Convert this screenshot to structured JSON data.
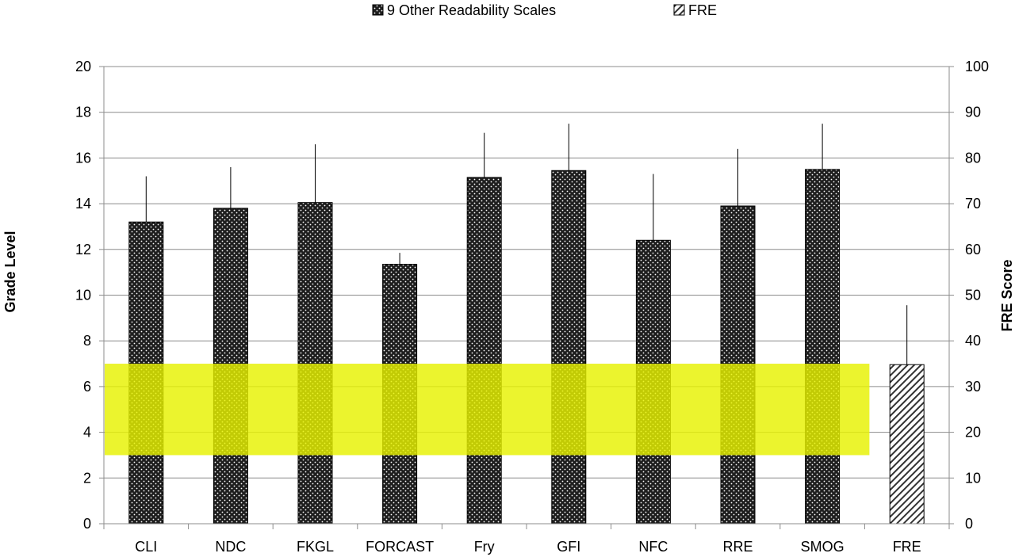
{
  "chart_data": {
    "type": "bar",
    "categories": [
      "CLI",
      "NDC",
      "FKGL",
      "FORCAST",
      "Fry",
      "GFI",
      "NFC",
      "RRE",
      "SMOG",
      "FRE"
    ],
    "series": [
      {
        "name": "9 Other Readability Scales",
        "axis": "left",
        "pattern": "dots",
        "color": "#222222",
        "values": [
          13.2,
          13.8,
          14.05,
          11.35,
          15.15,
          15.45,
          12.4,
          13.9,
          15.5,
          null
        ],
        "error_upper": [
          2.0,
          1.8,
          2.55,
          0.5,
          1.95,
          2.05,
          2.9,
          2.5,
          2.0,
          null
        ]
      },
      {
        "name": "FRE",
        "axis": "right",
        "pattern": "hatch",
        "color": "#333333",
        "values": [
          null,
          null,
          null,
          null,
          null,
          null,
          null,
          null,
          null,
          34.8
        ],
        "error_upper": [
          null,
          null,
          null,
          null,
          null,
          null,
          null,
          null,
          null,
          13.0
        ]
      }
    ],
    "ylabel": "Grade Level",
    "ylim": [
      0,
      20
    ],
    "y_ticks": [
      0,
      2,
      4,
      6,
      8,
      10,
      12,
      14,
      16,
      18,
      20
    ],
    "y2label": "FRE Score",
    "y2lim": [
      0,
      100
    ],
    "y2_ticks": [
      0,
      10,
      20,
      30,
      40,
      50,
      60,
      70,
      80,
      90,
      100
    ],
    "highlight_band": {
      "from": 3,
      "to": 7,
      "color": "#e6f200",
      "opacity": 0.82
    },
    "grid": true,
    "legend_position": "top-center"
  }
}
